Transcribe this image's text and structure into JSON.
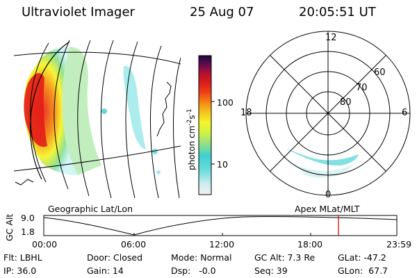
{
  "header": {
    "title": "Ultraviolet Imager",
    "date": "25 Aug 07",
    "time": "20:05:51 UT"
  },
  "geo_panel": {
    "label": "Geographic Lat/Lon"
  },
  "polar_panel": {
    "label": "Apex MLat/MLT",
    "mlt_labels": [
      "12",
      "18",
      "6",
      "0"
    ],
    "lat_labels": [
      "60",
      "70",
      "80"
    ]
  },
  "colorbar": {
    "label": "photon cm",
    "label_exp1": "-2",
    "label_mid": "s",
    "label_exp2": "-1",
    "ticks": [
      "100",
      "10"
    ],
    "scale": "log",
    "colors": [
      "#f2f2f2",
      "#c9ecec",
      "#66dcdc",
      "#3fd0d0",
      "#8fe08a",
      "#cff046",
      "#f5f52b",
      "#f6bd1e",
      "#f58b12",
      "#ef3b17",
      "#d3191c",
      "#aa1036",
      "#5c0b54",
      "#1b0a33"
    ]
  },
  "altitude_plot": {
    "ylabel": "GC Alt",
    "y_ticks": [
      "9.0",
      "1.8"
    ],
    "x_ticks": [
      "00:00",
      "06:00",
      "12:00",
      "18:00",
      "23:59"
    ],
    "marker_color": "#cc0000",
    "current_time_hours": 20.1
  },
  "info": {
    "filter": "Flt: LBHL",
    "door": "Door: Closed",
    "mode": "Mode: Normal",
    "gc_alt": "GC Alt: 7.3 Re",
    "glat": "GLat: -47.2",
    "ip": "IP: 36.0",
    "gain": "Gain: 14",
    "dsp": "Dsp:   -0.0",
    "seq": "Seq: 39",
    "glon": "GLon:  67.7"
  }
}
